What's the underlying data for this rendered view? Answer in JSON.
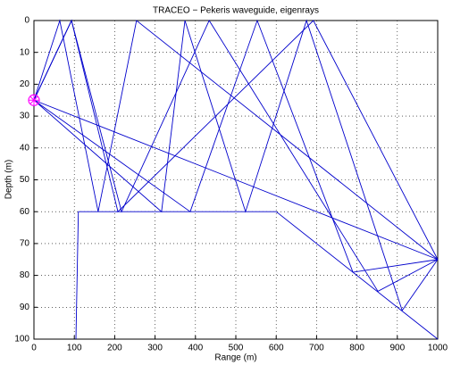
{
  "chart_data": {
    "type": "line",
    "title": "TRACEO − Pekeris waveguide, eigenrays",
    "xlabel": "Range (m)",
    "ylabel": "Depth (m)",
    "xlim": [
      0,
      1000
    ],
    "xticks": [
      0,
      100,
      200,
      300,
      400,
      500,
      600,
      700,
      800,
      900,
      1000
    ],
    "ylim": [
      0,
      100
    ],
    "yticks": [
      0,
      10,
      20,
      30,
      40,
      50,
      60,
      70,
      80,
      90,
      100
    ],
    "y_reversed": true,
    "grid": true,
    "source_marker": {
      "x": 0,
      "y": 25,
      "color": "#ff00ff"
    },
    "series": [
      {
        "color": "#0000cc",
        "x": [
          104,
          110,
          600,
          1000
        ],
        "values": [
          100,
          60,
          60,
          100
        ]
      },
      {
        "color": "#0000cc",
        "x": [
          0,
          1000
        ],
        "values": [
          25,
          75
        ]
      },
      {
        "color": "#0000cc",
        "x": [
          0,
          64,
          159,
          254,
          1000
        ],
        "values": [
          25,
          0,
          60,
          0,
          75
        ]
      },
      {
        "color": "#0000cc",
        "x": [
          0,
          93,
          217,
          434,
          852,
          1000
        ],
        "values": [
          25,
          0,
          60,
          0,
          85,
          75
        ]
      },
      {
        "color": "#0000cc",
        "x": [
          0,
          316,
          374,
          524,
          675,
          912,
          1000
        ],
        "values": [
          25,
          60,
          0,
          60,
          0,
          91,
          75
        ]
      },
      {
        "color": "#0000cc",
        "x": [
          0,
          387,
          553,
          790,
          1000
        ],
        "values": [
          25,
          60,
          0,
          79,
          75
        ]
      },
      {
        "color": "#0000cc",
        "x": [
          0,
          93,
          208,
          692,
          1000
        ],
        "values": [
          25,
          0,
          60,
          0,
          75
        ]
      }
    ]
  }
}
